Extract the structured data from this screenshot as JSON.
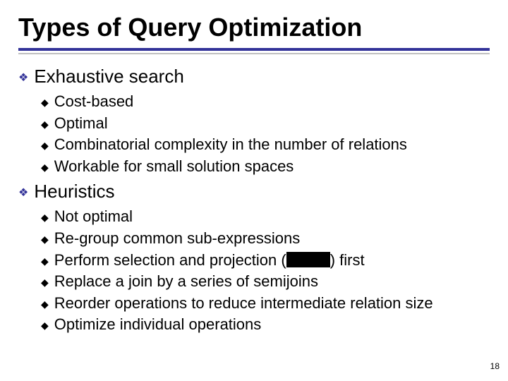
{
  "title": "Types of Query Optimization",
  "colors": {
    "title_underline_primary": "#333399",
    "title_underline_secondary": "#c0c0c0",
    "lvl1_bullet": "#333399",
    "lvl2_bullet": "#000000",
    "text": "#000000",
    "background": "#ffffff",
    "redacted_fill": "#000000"
  },
  "typography": {
    "title_fontsize": 36,
    "title_weight": "bold",
    "lvl1_fontsize": 26,
    "lvl2_fontsize": 22,
    "pagenum_fontsize": 12,
    "font_family": "Arial"
  },
  "bullets": {
    "lvl1_glyph": "❖",
    "lvl2_glyph": "◆"
  },
  "sections": [
    {
      "heading": "Exhaustive search",
      "items": [
        "Cost-based",
        "Optimal",
        "Combinatorial complexity in the number of relations",
        "Workable for small solution spaces"
      ]
    },
    {
      "heading": "Heuristics",
      "items": [
        "Not optimal",
        "Re-group common sub-expressions",
        "Perform selection and projection ( [REDACTED] ) first",
        "Replace a join by a series of semijoins",
        "Reorder operations to reduce intermediate relation size",
        "Optimize individual operations"
      ]
    }
  ],
  "page_number": "18"
}
